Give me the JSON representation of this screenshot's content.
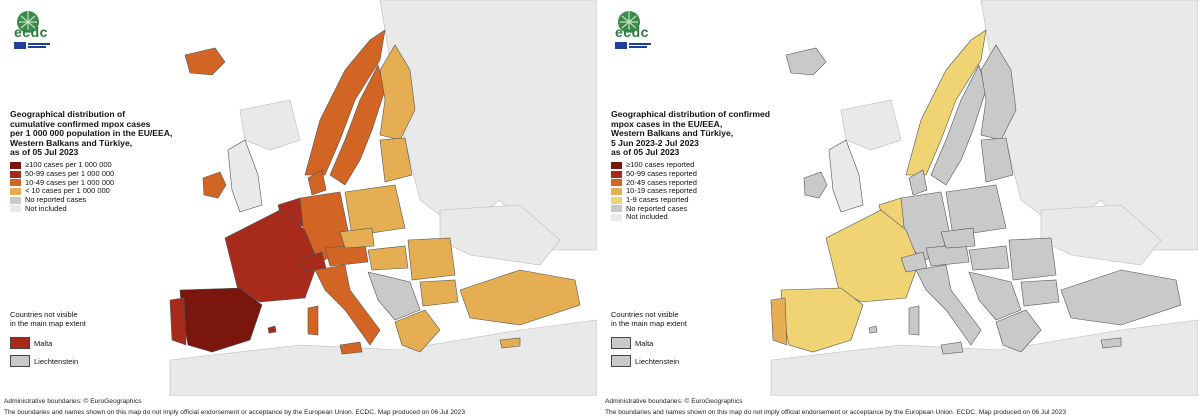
{
  "colors": {
    "c100": "#7b160f",
    "c50": "#a82a1b",
    "c10": "#d36524",
    "clt10": "#e6ae52",
    "none": "#c9c9c9",
    "notIncluded": "#e9e9e9",
    "sea": "#ffffff",
    "border": "#555555",
    "r_100": "#7b160f",
    "r_50": "#a82a1b",
    "r_20": "#d36524",
    "r_10": "#e6ae52",
    "r_1": "#f0d474"
  },
  "left_map": {
    "logo_text": "ecdc",
    "title": "Geographical distribution of\ncumulative confirmed mpox cases\nper 1 000 000 population in the EU/EEA,\nWestern Balkans and Türkiye,\nas of 05 Jul 2023",
    "legend": [
      {
        "label": "≥100 cases per 1 000 000",
        "color": "#7b160f"
      },
      {
        "label": "50-99 cases per 1 000 000",
        "color": "#a82a1b"
      },
      {
        "label": "10-49 cases per 1 000 000",
        "color": "#d36524"
      },
      {
        "label": "< 10 cases per 1 000 000",
        "color": "#e6ae52"
      },
      {
        "label": "No reported cases",
        "color": "#c9c9c9"
      },
      {
        "label": "Not included",
        "color": "#e9e9e9"
      }
    ],
    "inset_title": "Countries not visible\nin the main map extent",
    "inset": [
      {
        "label": "Malta",
        "color": "#a82a1b"
      },
      {
        "label": "Liechtenstein",
        "color": "#c9c9c9"
      }
    ],
    "footer_line1": "Administrative boundaries: © EuroGeographics",
    "footer_line2": "The boundaries and names shown on this map do not imply official endorsement or acceptance by the European Union. ECDC. Map produced on 06 Jul 2023"
  },
  "right_map": {
    "logo_text": "ecdc",
    "title": "Geographical distribution of confirmed\nmpox cases in the EU/EEA,\nWestern Balkans and Türkiye,\n5 Jun 2023-2 Jul 2023\nas of 05 Jul 2023",
    "legend": [
      {
        "label": "≥100 cases reported",
        "color": "#7b160f"
      },
      {
        "label": "50-99 cases reported",
        "color": "#a82a1b"
      },
      {
        "label": "20-49 cases reported",
        "color": "#d36524"
      },
      {
        "label": "10-19 cases reported",
        "color": "#e6ae52"
      },
      {
        "label": "1-9 cases reported",
        "color": "#f0d474"
      },
      {
        "label": "No reported cases",
        "color": "#c9c9c9"
      },
      {
        "label": "Not included",
        "color": "#e9e9e9"
      }
    ],
    "inset_title": "Countries not visible\nin the main map extent",
    "inset": [
      {
        "label": "Malta",
        "color": "#c9c9c9"
      },
      {
        "label": "Liechtenstein",
        "color": "#c9c9c9"
      }
    ],
    "footer_line1": "Administrative boundaries: © EuroGeographics",
    "footer_line2": "The boundaries and names shown on this map do not imply official endorsement or acceptance by the European Union. ECDC. Map produced on 06 Jul 2023"
  }
}
